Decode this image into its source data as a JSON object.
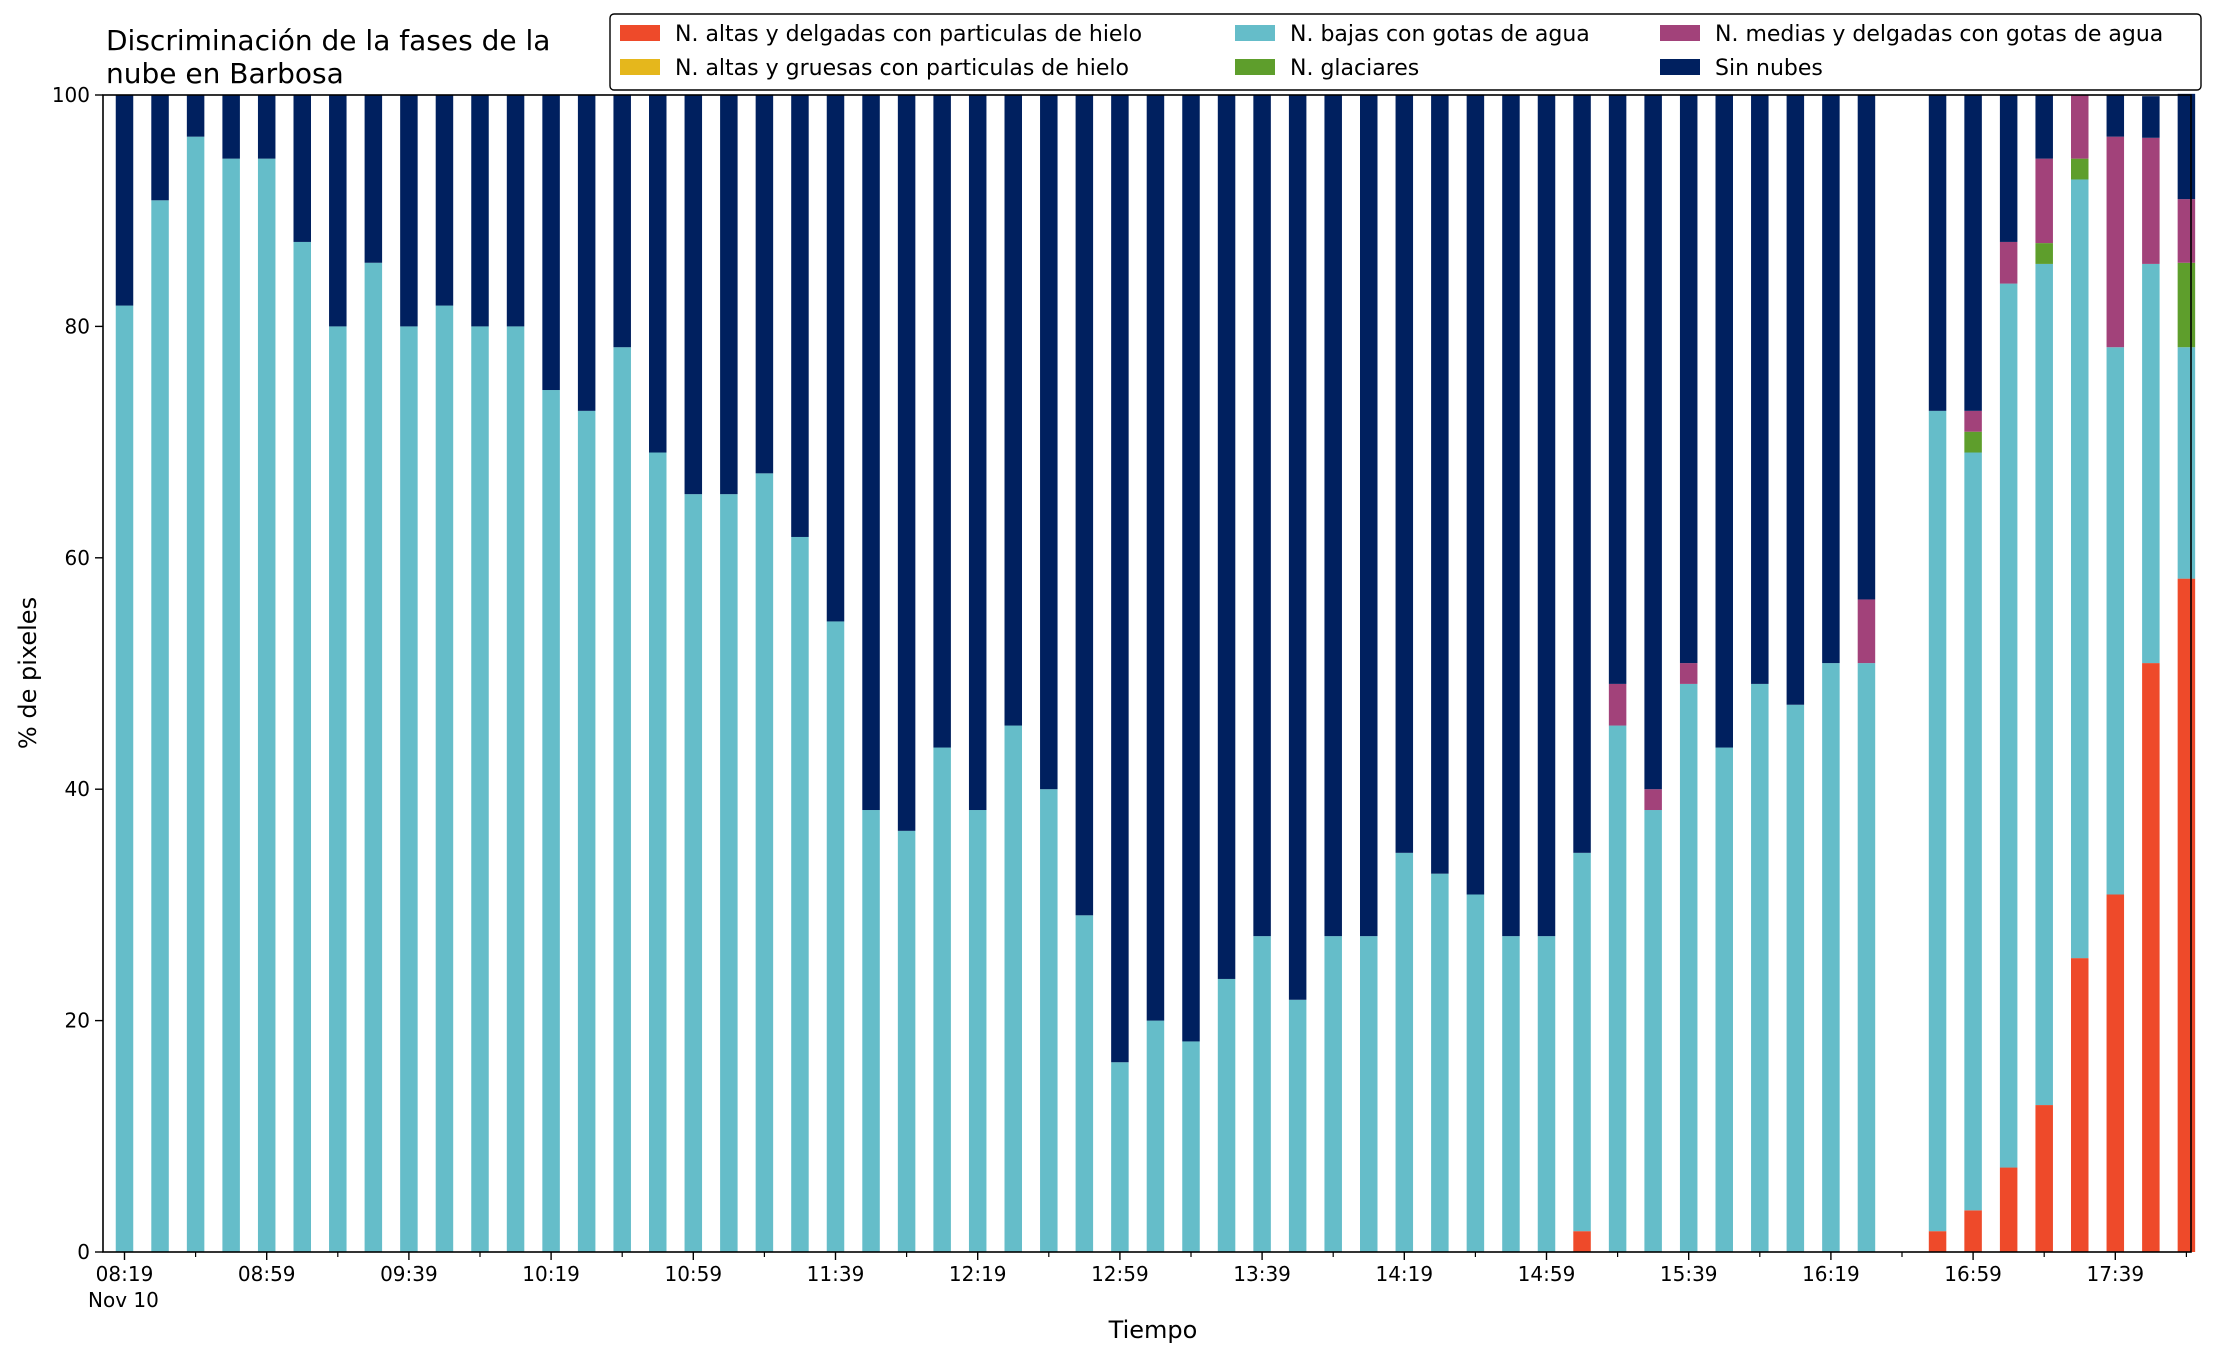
{
  "chart_data": {
    "type": "bar",
    "stacked": true,
    "title_lines": [
      "Discriminación de la fases de la",
      "nube en Barbosa"
    ],
    "xlabel": "Tiempo",
    "ylabel": "% de pixeles",
    "ylim": [
      0,
      100
    ],
    "yticks": [
      0,
      20,
      40,
      60,
      80,
      100
    ],
    "x_tick_labels": [
      "08:19",
      "08:59",
      "09:39",
      "10:19",
      "10:59",
      "11:39",
      "12:19",
      "12:59",
      "13:39",
      "14:19",
      "14:59",
      "15:39",
      "16:19",
      "16:59",
      "17:39"
    ],
    "x_date_label": "Nov 10",
    "grid": false,
    "legend_position": "top-right",
    "series": [
      {
        "name": "N. altas y delgadas con particulas de hielo",
        "color": "#EE4A2A",
        "values": [
          0,
          0,
          0,
          0,
          0,
          0,
          0,
          0,
          0,
          0,
          0,
          0,
          0,
          0,
          0,
          0,
          0,
          0,
          0,
          0,
          0,
          0,
          0,
          0,
          0,
          0,
          0,
          0,
          0,
          0,
          0,
          0,
          0,
          0,
          0,
          0,
          0,
          0,
          0,
          0,
          0,
          1.8,
          0,
          0,
          0,
          0,
          0,
          0,
          0,
          0,
          0,
          1.8,
          3.6,
          7.3,
          12.7,
          25.4,
          30.9,
          50.9,
          58.2
        ]
      },
      {
        "name": "N. altas y gruesas con particulas de hielo",
        "color": "#E5B71C",
        "values": [
          0,
          0,
          0,
          0,
          0,
          0,
          0,
          0,
          0,
          0,
          0,
          0,
          0,
          0,
          0,
          0,
          0,
          0,
          0,
          0,
          0,
          0,
          0,
          0,
          0,
          0,
          0,
          0,
          0,
          0,
          0,
          0,
          0,
          0,
          0,
          0,
          0,
          0,
          0,
          0,
          0,
          0,
          0,
          0,
          0,
          0,
          0,
          0,
          0,
          0,
          0,
          0,
          0,
          0,
          0,
          0,
          0,
          0,
          0
        ]
      },
      {
        "name": "N. bajas con gotas de agua",
        "color": "#65BDC9",
        "values": [
          81.8,
          90.9,
          96.4,
          94.5,
          94.5,
          87.3,
          80,
          85.5,
          80,
          81.8,
          80,
          80,
          74.5,
          72.7,
          78.2,
          69.1,
          65.5,
          65.5,
          67.3,
          61.8,
          54.5,
          38.2,
          36.4,
          43.6,
          38.2,
          45.5,
          40,
          29.1,
          16.4,
          20,
          18.2,
          23.6,
          27.3,
          21.8,
          27.3,
          27.3,
          34.5,
          32.7,
          30.9,
          27.3,
          27.3,
          32.7,
          45.5,
          38.2,
          49.1,
          43.6,
          49.1,
          47.3,
          50.9,
          50.9,
          0,
          70.9,
          65.5,
          76.4,
          72.7,
          67.3,
          47.3,
          34.5,
          20
        ]
      },
      {
        "name": "N. glaciares",
        "color": "#5E9E2C",
        "values": [
          0,
          0,
          0,
          0,
          0,
          0,
          0,
          0,
          0,
          0,
          0,
          0,
          0,
          0,
          0,
          0,
          0,
          0,
          0,
          0,
          0,
          0,
          0,
          0,
          0,
          0,
          0,
          0,
          0,
          0,
          0,
          0,
          0,
          0,
          0,
          0,
          0,
          0,
          0,
          0,
          0,
          0,
          0,
          0,
          0,
          0,
          0,
          0,
          0,
          0,
          0,
          0,
          1.8,
          0,
          1.8,
          1.8,
          0,
          0,
          7.3
        ]
      },
      {
        "name": "N. medias y delgadas con gotas de agua",
        "color": "#A2427A",
        "values": [
          0,
          0,
          0,
          0,
          0,
          0,
          0,
          0,
          0,
          0,
          0,
          0,
          0,
          0,
          0,
          0,
          0,
          0,
          0,
          0,
          0,
          0,
          0,
          0,
          0,
          0,
          0,
          0,
          0,
          0,
          0,
          0,
          0,
          0,
          0,
          0,
          0,
          0,
          0,
          0,
          0,
          0,
          3.6,
          1.8,
          1.8,
          0,
          0,
          0,
          0,
          5.5,
          0,
          0,
          1.8,
          3.6,
          7.3,
          5.5,
          18.2,
          10.9,
          5.5
        ]
      },
      {
        "name": "Sin nubes",
        "color": "#00205F",
        "values": [
          18.2,
          9.1,
          3.6,
          5.5,
          5.5,
          12.7,
          20,
          14.5,
          20,
          18.2,
          20,
          20,
          25.5,
          27.3,
          21.8,
          30.9,
          34.5,
          34.5,
          32.7,
          38.2,
          45.5,
          61.8,
          63.6,
          56.4,
          61.8,
          54.5,
          60,
          70.9,
          83.6,
          80,
          81.8,
          76.4,
          72.7,
          78.2,
          72.7,
          72.7,
          65.5,
          67.3,
          69.1,
          72.7,
          72.7,
          65.5,
          50.9,
          60,
          49.1,
          56.4,
          50.9,
          52.7,
          49.1,
          43.6,
          0,
          27.3,
          27.3,
          12.7,
          5.5,
          0,
          3.6,
          3.6,
          9.1
        ]
      }
    ]
  }
}
